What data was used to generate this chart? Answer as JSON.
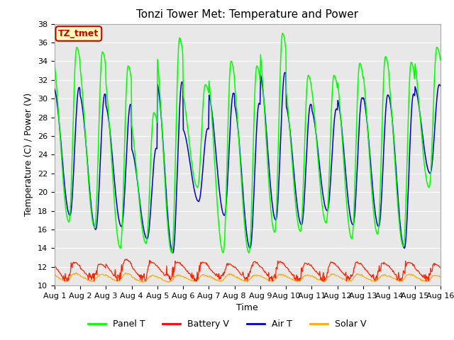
{
  "title": "Tonzi Tower Met: Temperature and Power",
  "xlabel": "Time",
  "ylabel": "Temperature (C) / Power (V)",
  "ylim": [
    10,
    38
  ],
  "x_tick_labels": [
    "Aug 1",
    "Aug 2",
    "Aug 3",
    "Aug 4",
    "Aug 5",
    "Aug 6",
    "Aug 7",
    "Aug 8",
    "Aug 9",
    "Aug 10",
    "Aug 11",
    "Aug 12",
    "Aug 13",
    "Aug 14",
    "Aug 15",
    "Aug 16"
  ],
  "legend_labels": [
    "Panel T",
    "Battery V",
    "Air T",
    "Solar V"
  ],
  "legend_colors": [
    "#00ff00",
    "#ff0000",
    "#0000cc",
    "#ffaa00"
  ],
  "annotation_text": "TZ_tmet",
  "annotation_bg": "#ffffbb",
  "annotation_border": "#cc0000",
  "bg_color": "#e8e8e8",
  "grid_color": "#ffffff",
  "panel_t_color": "#00ff00",
  "battery_v_color": "#ff2200",
  "air_t_color": "#0000cc",
  "solar_v_color": "#ffaa00",
  "title_fontsize": 11,
  "axis_fontsize": 9,
  "tick_fontsize": 8,
  "panel_t_peaks": [
    35.5,
    35.0,
    33.5,
    28.5,
    36.5,
    31.5,
    34.0,
    33.5,
    37.0,
    32.5,
    32.5,
    33.8,
    34.5,
    33.9,
    35.5
  ],
  "panel_t_troughs": [
    16.8,
    16.2,
    14.0,
    14.5,
    13.5,
    20.5,
    13.5,
    13.5,
    15.7,
    15.8,
    16.7,
    15.0,
    15.5,
    14.2,
    20.5
  ],
  "air_t_peaks": [
    31.2,
    30.5,
    29.4,
    24.7,
    31.8,
    26.8,
    30.6,
    29.5,
    32.8,
    29.4,
    28.9,
    30.1,
    30.4,
    30.5,
    31.5
  ],
  "air_t_troughs": [
    17.5,
    16.0,
    16.3,
    15.0,
    13.5,
    19.0,
    17.5,
    14.0,
    17.0,
    16.5,
    18.0,
    16.5,
    16.3,
    14.0,
    22.0
  ]
}
